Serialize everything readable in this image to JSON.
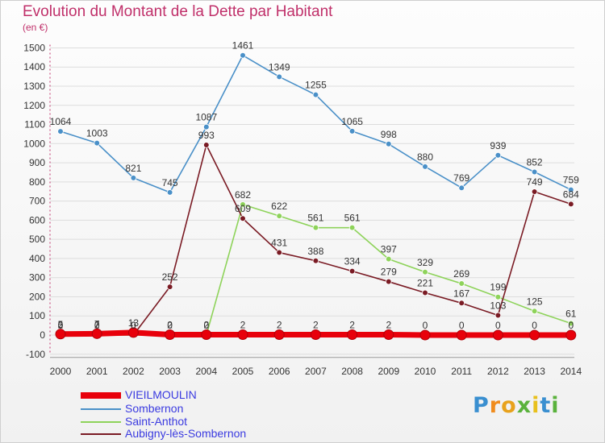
{
  "chart_data": {
    "type": "line",
    "title": "Evolution du Montant de la Dette par Habitant",
    "subtitle": "(en €)",
    "xlabel": "",
    "ylabel": "",
    "x": [
      "2000",
      "2001",
      "2002",
      "2003",
      "2004",
      "2005",
      "2006",
      "2007",
      "2008",
      "2009",
      "2010",
      "2011",
      "2012",
      "2013",
      "2014"
    ],
    "ylim": [
      -100,
      1500
    ],
    "yticks": [
      -100,
      0,
      100,
      200,
      300,
      400,
      500,
      600,
      700,
      800,
      900,
      1000,
      1100,
      1200,
      1300,
      1400,
      1500
    ],
    "grid": true,
    "legend_position": "bottom-left",
    "series": [
      {
        "name": "VIEILMOULIN",
        "color": "#e8000b",
        "values": [
          5,
          7,
          13,
          2,
          2,
          2,
          2,
          2,
          2,
          2,
          0,
          0,
          0,
          0,
          0
        ],
        "labels": [
          "5",
          "7",
          "13",
          "2",
          "2",
          "2",
          "2",
          "2",
          "2",
          "2",
          "0",
          "0",
          "0",
          "0",
          "0"
        ]
      },
      {
        "name": "Sombernon",
        "color": "#4a90c8",
        "values": [
          1064,
          1003,
          821,
          745,
          1087,
          1461,
          1349,
          1255,
          1065,
          998,
          880,
          769,
          939,
          852,
          759
        ],
        "labels": [
          "1064",
          "1003",
          "821",
          "745",
          "1087",
          "1461",
          "1349",
          "1255",
          "1065",
          "998",
          "880",
          "769",
          "939",
          "852",
          "759"
        ]
      },
      {
        "name": "Saint-Anthot",
        "color": "#8ed35a",
        "values": [
          0,
          0,
          0,
          0,
          0,
          682,
          622,
          561,
          561,
          397,
          329,
          269,
          199,
          125,
          61
        ],
        "labels": [
          "0",
          "0",
          "0",
          "0",
          "0",
          "682",
          "622",
          "561",
          "561",
          "397",
          "329",
          "269",
          "199",
          "125",
          "61"
        ]
      },
      {
        "name": "Aubigny-lès-Sombernon",
        "color": "#7a1b24",
        "values": [
          2,
          2,
          0,
          252,
          993,
          609,
          431,
          388,
          334,
          279,
          221,
          167,
          103,
          749,
          684
        ],
        "labels": [
          "2",
          "2",
          "0",
          "252",
          "993",
          "609",
          "431",
          "388",
          "334",
          "279",
          "221",
          "167",
          "103",
          "749",
          "684"
        ]
      }
    ]
  },
  "logo": {
    "letters": [
      "P",
      "r",
      "o",
      "x",
      "i",
      "t",
      "i"
    ],
    "colors": [
      "#3a8fd0",
      "#f08c1e",
      "#e8a21c",
      "#5ab23c",
      "#e8c01c",
      "#3a8fd0",
      "#5ab23c"
    ]
  }
}
